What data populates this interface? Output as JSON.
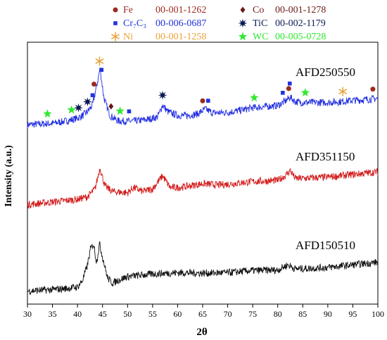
{
  "chart_data": {
    "type": "line",
    "xlabel": "2θ",
    "ylabel": "Intensity (a.u.)",
    "xlim": [
      30,
      100
    ],
    "x_ticks": [
      30,
      35,
      40,
      45,
      50,
      55,
      60,
      65,
      70,
      75,
      80,
      85,
      90,
      95,
      100
    ],
    "y_ticks": "none",
    "grid": false,
    "legend_position": "top",
    "legend": [
      {
        "marker": "circle",
        "phase": "Fe",
        "card": "00-001-1262",
        "color": "#9b2a1f"
      },
      {
        "marker": "diamond",
        "phase": "Co",
        "card": "00-001-1278",
        "color": "#6b1a16"
      },
      {
        "marker": "square",
        "phase": "Cr7C3",
        "phase_display": "Cr₇C₃",
        "card": "00-006-0687",
        "color": "#2233dd"
      },
      {
        "marker": "star-burst",
        "phase": "TiC",
        "card": "00-002-1179",
        "color": "#0b1a55"
      },
      {
        "marker": "asterisk",
        "phase": "Ni",
        "card": "00-001-1258",
        "color": "#e8a23a"
      },
      {
        "marker": "star",
        "phase": "WC",
        "card": "00-005-0728",
        "color": "#2ee82e"
      }
    ],
    "series": [
      {
        "name": "AFD250550",
        "color": "#1f2de0",
        "x": [
          30,
          35,
          38,
          40,
          41,
          42,
          43,
          43.8,
          44.5,
          45.3,
          46.5,
          48,
          50,
          52,
          54,
          56,
          57,
          58,
          60,
          62,
          64,
          65.5,
          67,
          70,
          72,
          75,
          78,
          80,
          81.5,
          82.5,
          83.5,
          85,
          88,
          90,
          93,
          95,
          97,
          100
        ],
        "y": [
          0.685,
          0.69,
          0.7,
          0.71,
          0.72,
          0.735,
          0.76,
          0.83,
          0.9,
          0.785,
          0.72,
          0.7,
          0.698,
          0.7,
          0.705,
          0.715,
          0.76,
          0.735,
          0.72,
          0.72,
          0.726,
          0.745,
          0.73,
          0.732,
          0.738,
          0.75,
          0.755,
          0.758,
          0.775,
          0.79,
          0.773,
          0.77,
          0.77,
          0.77,
          0.774,
          0.778,
          0.78,
          0.785
        ]
      },
      {
        "name": "AFD351150",
        "color": "#d11a1a",
        "x": [
          30,
          35,
          40,
          42,
          43.5,
          44.5,
          45.5,
          47,
          50,
          51.2,
          53,
          55,
          57,
          58.5,
          60,
          62,
          65,
          68,
          70,
          75,
          80,
          81.5,
          82.5,
          83.5,
          85,
          90,
          95,
          100
        ],
        "y": [
          0.38,
          0.39,
          0.4,
          0.41,
          0.44,
          0.52,
          0.45,
          0.43,
          0.425,
          0.445,
          0.43,
          0.44,
          0.49,
          0.445,
          0.445,
          0.45,
          0.46,
          0.455,
          0.458,
          0.468,
          0.472,
          0.49,
          0.51,
          0.48,
          0.48,
          0.485,
          0.495,
          0.505
        ]
      },
      {
        "name": "AFD150510",
        "color": "#111111",
        "x": [
          30,
          35,
          38,
          40,
          41,
          42,
          42.6,
          43.2,
          43.8,
          44.4,
          45.0,
          46,
          47,
          48,
          50,
          55,
          60,
          65,
          70,
          75,
          80,
          82,
          83.5,
          85,
          90,
          95,
          100
        ],
        "y": [
          0.05,
          0.055,
          0.06,
          0.065,
          0.09,
          0.15,
          0.21,
          0.23,
          0.16,
          0.23,
          0.18,
          0.1,
          0.08,
          0.09,
          0.105,
          0.115,
          0.12,
          0.118,
          0.12,
          0.128,
          0.13,
          0.15,
          0.135,
          0.135,
          0.14,
          0.15,
          0.16
        ]
      }
    ],
    "peak_markers": [
      {
        "x": 34,
        "series": "AFD250550",
        "phase": "WC"
      },
      {
        "x": 38.8,
        "series": "AFD250550",
        "phase": "WC"
      },
      {
        "x": 40.2,
        "series": "AFD250550",
        "phase": "TiC"
      },
      {
        "x": 42,
        "series": "AFD250550",
        "phase": "TiC"
      },
      {
        "x": 43,
        "series": "AFD250550",
        "phase": "Cr7C3"
      },
      {
        "x": 43.3,
        "series": "AFD250550",
        "phase": "Fe"
      },
      {
        "x": 44.4,
        "series": "AFD250550",
        "phase": "Ni"
      },
      {
        "x": 44.8,
        "series": "AFD250550",
        "phase": "Cr7C3"
      },
      {
        "x": 46.7,
        "series": "AFD250550",
        "phase": "Co"
      },
      {
        "x": 48.5,
        "series": "AFD250550",
        "phase": "WC"
      },
      {
        "x": 50.3,
        "series": "AFD250550",
        "phase": "Cr7C3"
      },
      {
        "x": 57,
        "series": "AFD250550",
        "phase": "TiC"
      },
      {
        "x": 65,
        "series": "AFD250550",
        "phase": "Fe"
      },
      {
        "x": 66.1,
        "series": "AFD250550",
        "phase": "Cr7C3"
      },
      {
        "x": 75.3,
        "series": "AFD250550",
        "phase": "WC"
      },
      {
        "x": 81,
        "series": "AFD250550",
        "phase": "Cr7C3"
      },
      {
        "x": 82.2,
        "series": "AFD250550",
        "phase": "Fe"
      },
      {
        "x": 82.4,
        "series": "AFD250550",
        "phase": "Cr7C3"
      },
      {
        "x": 85.5,
        "series": "AFD250550",
        "phase": "WC"
      },
      {
        "x": 93,
        "series": "AFD250550",
        "phase": "Ni"
      },
      {
        "x": 99,
        "series": "AFD250550",
        "phase": "Fe"
      }
    ]
  }
}
